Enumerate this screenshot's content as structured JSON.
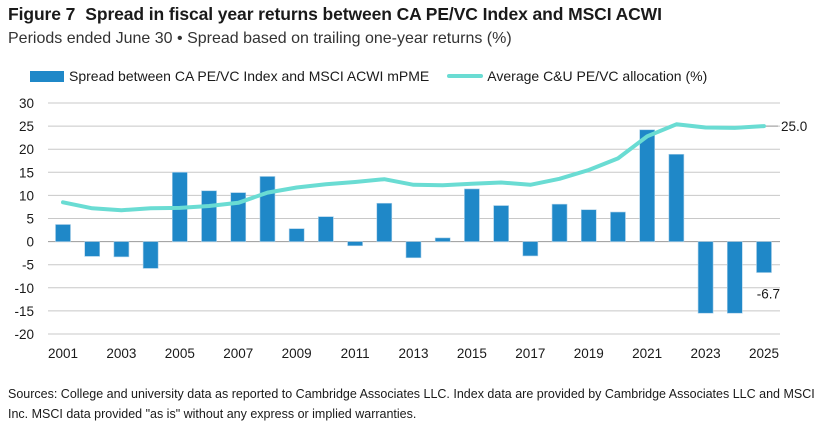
{
  "header": {
    "figure_label": "Figure 7",
    "title": "Spread in fiscal year returns between CA PE/VC Index and MSCI ACWI",
    "subtitle": "Periods ended June 30 • Spread based on trailing one-year returns (%)"
  },
  "legend": {
    "items": [
      {
        "label": "Spread between CA PE/VC Index and MSCI ACWI mPME",
        "icon": "bar-swatch"
      },
      {
        "label": "Average C&U PE/VC allocation (%)",
        "icon": "line-swatch"
      }
    ]
  },
  "colors": {
    "bar": "#1f88c8",
    "line": "#6adcd3",
    "grid": "#c8c8c8",
    "zero_axis": "#9a9a9a"
  },
  "chart_data": {
    "type": "bar",
    "title": "Spread in fiscal year returns between CA PE/VC Index and MSCI ACWI",
    "xlabel": "",
    "ylabel": "",
    "ylim": [
      -20,
      30
    ],
    "yticks": [
      30,
      25,
      20,
      15,
      10,
      5,
      0,
      -5,
      -10,
      -15,
      -20
    ],
    "grid": true,
    "legend_position": "top",
    "x": [
      2001,
      2002,
      2003,
      2004,
      2005,
      2006,
      2007,
      2008,
      2009,
      2010,
      2011,
      2012,
      2013,
      2014,
      2015,
      2016,
      2017,
      2018,
      2019,
      2020,
      2021,
      2022,
      2023,
      2024,
      2025
    ],
    "xtick_labels": [
      "2001",
      "2003",
      "2005",
      "2007",
      "2009",
      "2011",
      "2013",
      "2015",
      "2017",
      "2019",
      "2021",
      "2023",
      "2025"
    ],
    "series": [
      {
        "name": "Spread between CA PE/VC Index and MSCI ACWI mPME",
        "type": "bar",
        "values": [
          3.7,
          -3.2,
          -3.3,
          -5.8,
          15.0,
          11.0,
          10.6,
          14.1,
          2.8,
          5.4,
          -0.9,
          8.3,
          -3.5,
          0.8,
          11.4,
          7.8,
          -3.1,
          8.1,
          6.9,
          6.4,
          24.2,
          18.9,
          -15.5,
          -15.5,
          -6.7
        ]
      },
      {
        "name": "Average C&U PE/VC allocation (%)",
        "type": "line",
        "values": [
          8.5,
          7.2,
          6.8,
          7.2,
          7.3,
          7.7,
          8.4,
          10.6,
          11.7,
          12.4,
          12.9,
          13.5,
          12.3,
          12.2,
          12.5,
          12.8,
          12.3,
          13.6,
          15.5,
          18.0,
          22.8,
          25.4,
          24.7,
          24.6,
          25.0
        ]
      }
    ],
    "annotations": [
      {
        "series": "Average C&U PE/VC allocation (%)",
        "x": 2025,
        "text": "25.0"
      },
      {
        "series": "Spread between CA PE/VC Index and MSCI ACWI mPME",
        "x": 2025,
        "text": "-6.7"
      }
    ]
  },
  "footer": {
    "sources": "Sources: College and university data as reported to Cambridge Associates LLC. Index data are provided by Cambridge Associates LLC and MSCI Inc. MSCI data provided \"as is\" without any express or implied warranties."
  }
}
